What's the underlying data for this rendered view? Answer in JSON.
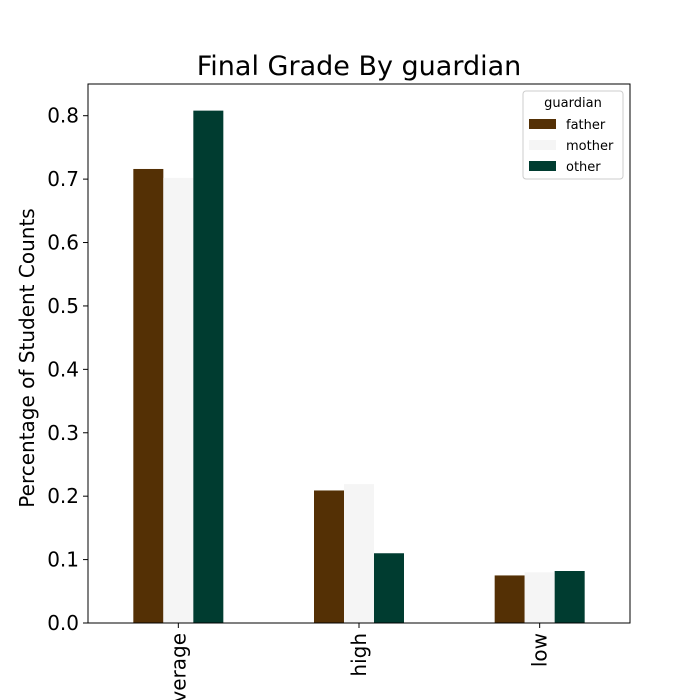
{
  "chart_data": {
    "type": "bar",
    "title": "Final Grade By guardian",
    "xlabel": "",
    "ylabel": "Percentage of Student Counts",
    "categories": [
      "average",
      "high",
      "low"
    ],
    "series": [
      {
        "name": "father",
        "color": "#543005",
        "values": [
          0.716,
          0.209,
          0.075
        ]
      },
      {
        "name": "mother",
        "color": "#f5f5f5",
        "values": [
          0.702,
          0.219,
          0.08
        ]
      },
      {
        "name": "other",
        "color": "#003c30",
        "values": [
          0.808,
          0.11,
          0.082
        ]
      }
    ],
    "ylim": [
      0,
      0.85
    ],
    "yticks": [
      0.0,
      0.1,
      0.2,
      0.3,
      0.4,
      0.5,
      0.6,
      0.7,
      0.8
    ],
    "ytick_labels": [
      "0.0",
      "0.1",
      "0.2",
      "0.3",
      "0.4",
      "0.5",
      "0.6",
      "0.7",
      "0.8"
    ],
    "grid": false,
    "legend": {
      "title": "guardian",
      "placement": "top-right"
    }
  }
}
